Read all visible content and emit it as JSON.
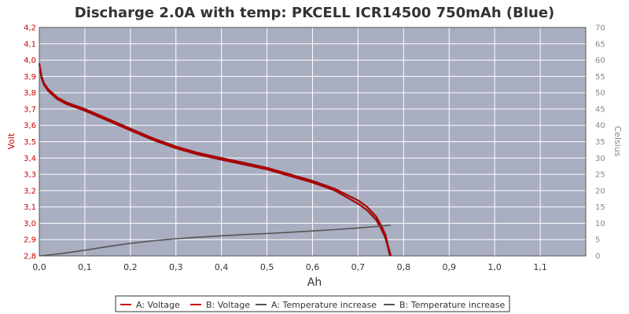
{
  "chart_data": {
    "type": "line",
    "title": "Discharge 2.0A with temp: PKCELL ICR14500 750mAh (Blue)",
    "xlabel": "Ah",
    "ylabel": "Volt",
    "y2label": "Celsius",
    "xlim": [
      0,
      1.2
    ],
    "ylim": [
      2.8,
      4.2
    ],
    "y2lim": [
      0,
      70
    ],
    "xticks": [
      "0,0",
      "0,1",
      "0,2",
      "0,3",
      "0,4",
      "0,5",
      "0,6",
      "0,7",
      "0,8",
      "0,9",
      "1,0",
      "1,1"
    ],
    "yticks": [
      "2,8",
      "2,9",
      "3,0",
      "3,1",
      "3,2",
      "3,3",
      "3,4",
      "3,5",
      "3,6",
      "3,7",
      "3,8",
      "3,9",
      "4,0",
      "4,1",
      "4,2"
    ],
    "y2ticks": [
      "0",
      "5",
      "10",
      "15",
      "20",
      "25",
      "30",
      "35",
      "40",
      "45",
      "50",
      "55",
      "60",
      "65",
      "70"
    ],
    "grid": true,
    "legend_position": "bottom",
    "colors": {
      "plot_bg": "#a9aec1",
      "grid": "#ffffff",
      "voltage": "#cc0000",
      "temperature": "#555555",
      "left_axis": "#cc0000",
      "right_axis": "#888888"
    },
    "series": [
      {
        "name": "A: Voltage",
        "axis": "left",
        "color": "#cc0000",
        "x": [
          0.0,
          0.005,
          0.01,
          0.02,
          0.04,
          0.06,
          0.1,
          0.15,
          0.2,
          0.25,
          0.3,
          0.35,
          0.4,
          0.45,
          0.5,
          0.55,
          0.6,
          0.65,
          0.7,
          0.72,
          0.74,
          0.75,
          0.76,
          0.765,
          0.77
        ],
        "y": [
          3.97,
          3.89,
          3.85,
          3.81,
          3.76,
          3.73,
          3.69,
          3.63,
          3.57,
          3.51,
          3.46,
          3.42,
          3.39,
          3.36,
          3.33,
          3.29,
          3.25,
          3.2,
          3.12,
          3.08,
          3.02,
          2.97,
          2.91,
          2.86,
          2.8
        ]
      },
      {
        "name": "B: Voltage",
        "axis": "left",
        "color": "#cc0000",
        "x": [
          0.0,
          0.005,
          0.01,
          0.02,
          0.04,
          0.06,
          0.1,
          0.15,
          0.2,
          0.25,
          0.3,
          0.35,
          0.4,
          0.45,
          0.5,
          0.55,
          0.6,
          0.65,
          0.7,
          0.72,
          0.74,
          0.75,
          0.76,
          0.765,
          0.772
        ],
        "y": [
          3.98,
          3.9,
          3.86,
          3.82,
          3.77,
          3.74,
          3.7,
          3.64,
          3.58,
          3.52,
          3.47,
          3.43,
          3.4,
          3.37,
          3.34,
          3.3,
          3.26,
          3.21,
          3.14,
          3.1,
          3.04,
          2.99,
          2.93,
          2.87,
          2.8
        ]
      },
      {
        "name": "A: Temperature increase",
        "axis": "right",
        "color": "#555555",
        "x": [
          0.0,
          0.05,
          0.1,
          0.15,
          0.2,
          0.25,
          0.3,
          0.35,
          0.4,
          0.45,
          0.5,
          0.55,
          0.6,
          0.65,
          0.7,
          0.75,
          0.77
        ],
        "y": [
          0,
          0.7,
          1.7,
          2.8,
          3.8,
          4.6,
          5.2,
          5.7,
          6.1,
          6.5,
          6.8,
          7.2,
          7.6,
          8.0,
          8.5,
          9.1,
          9.3
        ]
      },
      {
        "name": "B: Temperature increase",
        "axis": "right",
        "color": "#555555",
        "x": [
          0.0,
          0.05,
          0.1,
          0.15,
          0.2,
          0.25,
          0.3,
          0.35,
          0.4,
          0.45,
          0.5,
          0.55,
          0.6,
          0.65,
          0.7,
          0.75,
          0.772
        ],
        "y": [
          0,
          0.8,
          1.8,
          2.9,
          3.9,
          4.7,
          5.3,
          5.8,
          6.2,
          6.6,
          6.9,
          7.3,
          7.7,
          8.1,
          8.6,
          9.2,
          9.4
        ]
      }
    ]
  }
}
